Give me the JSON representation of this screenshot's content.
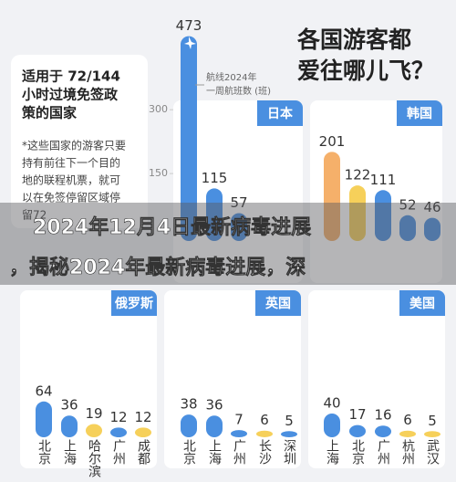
{
  "title_lines": [
    "各国游客都",
    "爱往哪儿飞？"
  ],
  "intro": {
    "heading": [
      "适用于 72/144",
      "小时过境免签政",
      "策的国家"
    ],
    "note": [
      "*这些国家的游客只要",
      "持有前往下一个目的",
      "地的联程机票，就可",
      "以在免签停留区域停",
      "留72"
    ]
  },
  "banner": [
    "2024年12月4日最新病毒进展",
    "，揭秘2024年最新病毒进展，深"
  ],
  "chart_data": [
    {
      "type": "bar",
      "title": "日本",
      "categories": [
        null,
        null,
        null
      ],
      "values": [
        473,
        115,
        57
      ],
      "colors": [
        "#4a8fe0",
        "#4a8fe0",
        "#4a8fe0"
      ],
      "ylim": [
        0,
        500
      ],
      "yticks": [
        150,
        300
      ],
      "annotation": [
        "航线2024年",
        "一周航班数 (班)"
      ]
    },
    {
      "type": "bar",
      "title": "韩国",
      "categories": [
        null,
        null,
        null,
        null,
        null
      ],
      "values": [
        201,
        122,
        111,
        52,
        46
      ],
      "colors": [
        "#f5b06a",
        "#f6d05a",
        "#4a8fe0",
        "#4a8fe0",
        "#4a8fe0"
      ],
      "ylim": [
        0,
        500
      ]
    },
    {
      "type": "bar",
      "title": "俄罗斯",
      "categories": [
        "北京",
        "上海",
        "哈尔滨",
        "广州",
        "成都"
      ],
      "values": [
        64,
        36,
        19,
        12,
        12
      ],
      "colors": [
        "#4a8fe0",
        "#4a8fe0",
        "#f6d05a",
        "#4a8fe0",
        "#f6d05a"
      ],
      "ylim": [
        0,
        100
      ]
    },
    {
      "type": "bar",
      "title": "英国",
      "categories": [
        "北京",
        "上海",
        "广州",
        "长沙",
        "深圳"
      ],
      "values": [
        38,
        36,
        7,
        6,
        5
      ],
      "colors": [
        "#4a8fe0",
        "#4a8fe0",
        "#4a8fe0",
        "#f6d05a",
        "#4a8fe0"
      ],
      "ylim": [
        0,
        100
      ]
    },
    {
      "type": "bar",
      "title": "美国",
      "categories": [
        "上海",
        "北京",
        "广州",
        "杭州",
        "武汉"
      ],
      "values": [
        40,
        17,
        16,
        6,
        5
      ],
      "colors": [
        "#4a8fe0",
        "#4a8fe0",
        "#4a8fe0",
        "#f6d05a",
        "#f6d05a"
      ],
      "ylim": [
        0,
        100
      ]
    }
  ]
}
